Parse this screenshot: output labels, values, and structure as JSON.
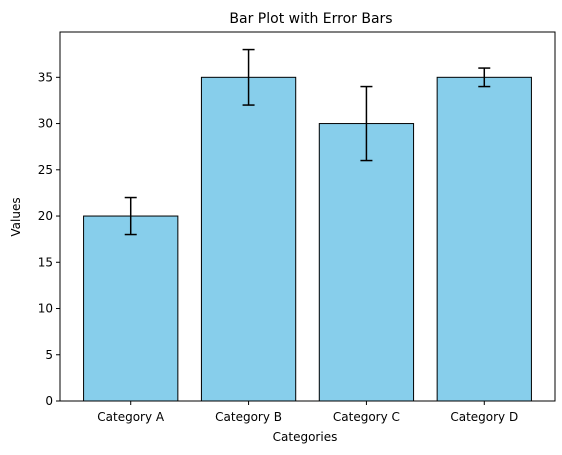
{
  "chart_data": {
    "type": "bar",
    "title": "Bar Plot with Error Bars",
    "xlabel": "Categories",
    "ylabel": "Values",
    "categories": [
      "Category A",
      "Category B",
      "Category C",
      "Category D"
    ],
    "values": [
      20,
      35,
      30,
      35
    ],
    "errors": [
      2,
      3,
      4,
      1
    ],
    "ylim": [
      0,
      39.9
    ],
    "yticks": [
      0,
      5,
      10,
      15,
      20,
      25,
      30,
      35
    ],
    "grid": false,
    "colors": {
      "bar_fill": "#87CEEB",
      "bar_edge": "#000000",
      "error_bar": "#000000",
      "axis": "#000000"
    }
  }
}
